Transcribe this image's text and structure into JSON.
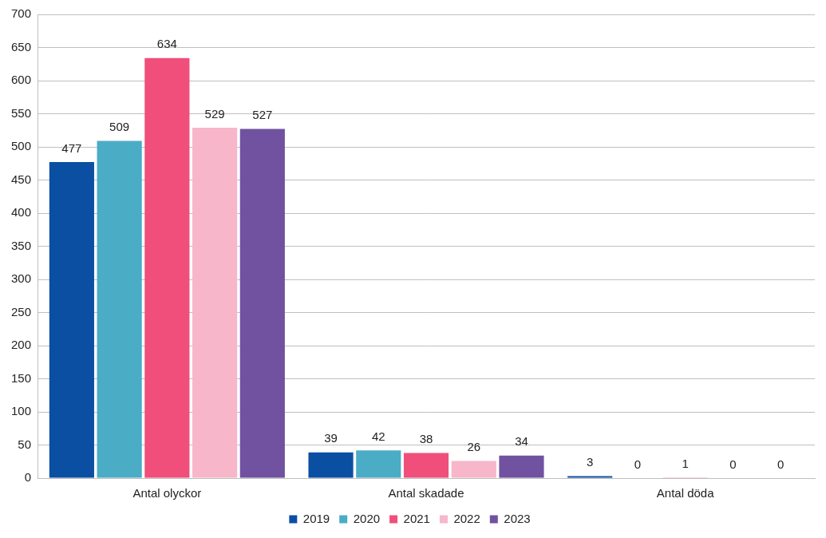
{
  "chart_data": {
    "type": "bar",
    "categories": [
      "Antal olyckor",
      "Antal skadade",
      "Antal döda"
    ],
    "series": [
      {
        "name": "2019",
        "color": "#0b4fa3",
        "values": [
          477,
          39,
          3
        ]
      },
      {
        "name": "2020",
        "color": "#4bacc6",
        "values": [
          509,
          42,
          0
        ]
      },
      {
        "name": "2021",
        "color": "#ef4f7a",
        "values": [
          634,
          38,
          1
        ]
      },
      {
        "name": "2022",
        "color": "#f7b6c9",
        "values": [
          529,
          26,
          0
        ]
      },
      {
        "name": "2023",
        "color": "#7052a0",
        "values": [
          527,
          34,
          0
        ]
      }
    ],
    "ylim": [
      0,
      700
    ],
    "yticks": [
      0,
      50,
      100,
      150,
      200,
      250,
      300,
      350,
      400,
      450,
      500,
      550,
      600,
      650,
      700
    ],
    "grid": true,
    "legend": "bottom",
    "data_labels": true
  }
}
